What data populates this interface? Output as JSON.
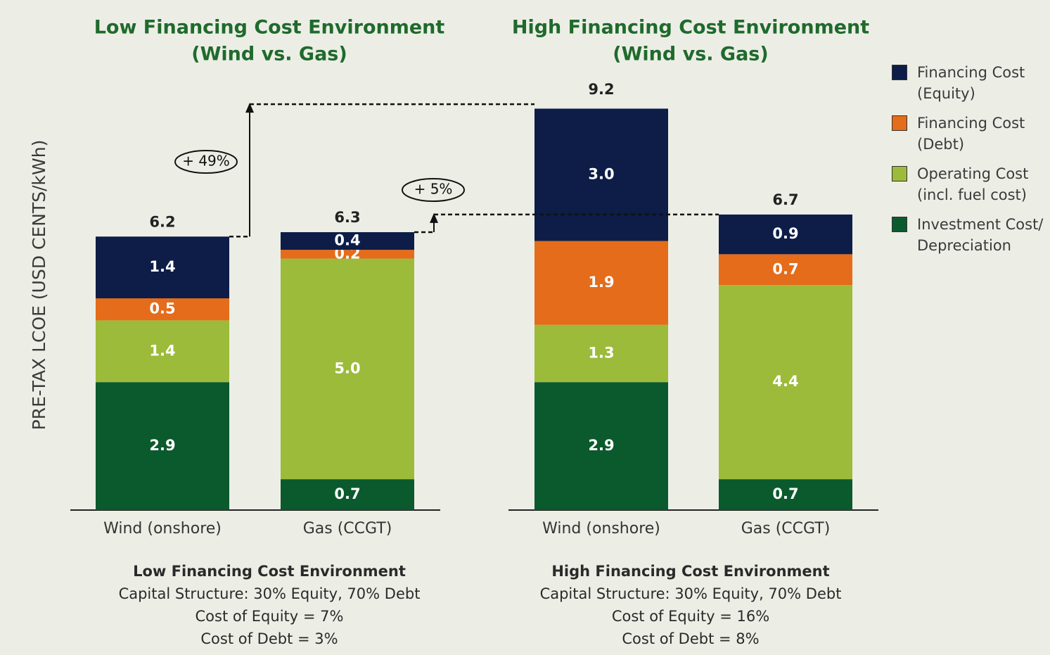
{
  "chart_data": {
    "type": "bar",
    "stacked": true,
    "ylabel": "PRE-TAX LCOE (USD CENTS/kWh)",
    "ylim": [
      0,
      10
    ],
    "panels": [
      {
        "title": [
          "Low Financing Cost Environment",
          "(Wind vs. Gas)"
        ],
        "notes": [
          "Low Financing Cost Environment",
          "Capital Structure: 30% Equity, 70% Debt",
          "Cost of Equity = 7%",
          "Cost of Debt = 3%"
        ]
      },
      {
        "title": [
          "High Financing Cost Environment",
          "(Wind vs. Gas)"
        ],
        "notes": [
          "High Financing Cost Environment",
          "Capital Structure: 30% Equity, 70% Debt",
          "Cost of Equity = 16%",
          "Cost of Debt = 8%"
        ]
      }
    ],
    "categories": [
      "Wind (onshore)",
      "Gas (CCGT)",
      "Wind (onshore)",
      "Gas (CCGT)"
    ],
    "series": [
      {
        "name": "Investment Cost/ Depreciation",
        "color": "#0b5a2d",
        "values": [
          2.9,
          0.7,
          2.9,
          0.7
        ]
      },
      {
        "name": "Operating Cost (incl. fuel cost)",
        "color": "#9dbb3a",
        "values": [
          1.4,
          5.0,
          1.3,
          4.4
        ]
      },
      {
        "name": "Financing Cost (Debt)",
        "color": "#e46c1a",
        "values": [
          0.5,
          0.2,
          1.9,
          0.7
        ]
      },
      {
        "name": "Financing Cost (Equity)",
        "color": "#0d1d48",
        "values": [
          1.4,
          0.4,
          3.0,
          0.9
        ]
      }
    ],
    "totals": [
      6.2,
      6.3,
      9.2,
      6.7
    ],
    "total_labels": [
      "6.2",
      "6.3",
      "9.2",
      "6.7"
    ],
    "value_labels": [
      [
        "2.9",
        "0.7",
        "2.9",
        "0.7"
      ],
      [
        "1.4",
        "5.0",
        "1.3",
        "4.4"
      ],
      [
        "0.5",
        "0.2",
        "1.9",
        "0.7"
      ],
      [
        "1.4",
        "0.4",
        "3.0",
        "0.9"
      ]
    ],
    "annotations": [
      "+ 49%",
      "+ 5%"
    ]
  }
}
